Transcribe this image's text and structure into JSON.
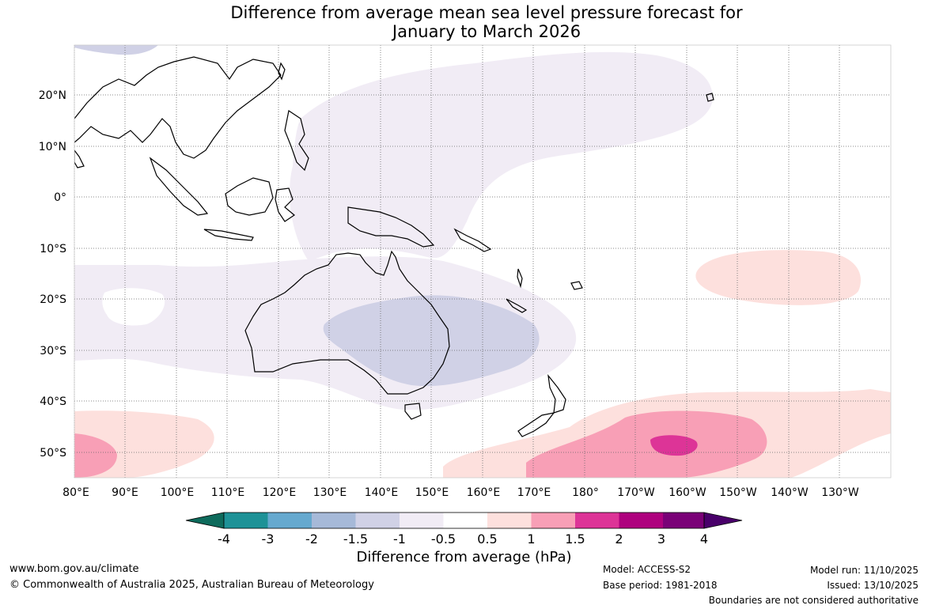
{
  "title": {
    "line1": "Difference from average mean sea level pressure forecast for",
    "line2": "January to March 2026"
  },
  "lat_labels": [
    "20°N",
    "10°N",
    "0°",
    "10°S",
    "20°S",
    "30°S",
    "40°S",
    "50°S"
  ],
  "lon_labels": [
    "80°E",
    "90°E",
    "100°E",
    "110°E",
    "120°E",
    "130°E",
    "140°E",
    "150°E",
    "160°E",
    "170°E",
    "180°",
    "170°W",
    "160°W",
    "150°W",
    "140°W",
    "130°W"
  ],
  "colorbar": {
    "ticks": [
      "-4",
      "-3",
      "-2",
      "-1.5",
      "-1",
      "-0.5",
      "0.5",
      "1",
      "1.5",
      "2",
      "3",
      "4"
    ],
    "colors": [
      "#0e6b5c",
      "#1e9297",
      "#66a9cf",
      "#a6b9d8",
      "#d0d1e6",
      "#f1ecf5",
      "#ffffff",
      "#fde0dd",
      "#f89fb6",
      "#dd3497",
      "#ae017e",
      "#7a0177",
      "#49006a"
    ],
    "title": "Difference from average (hPa)"
  },
  "footer": {
    "website": "www.bom.gov.au/climate",
    "copyright": "© Commonwealth of Australia 2025, Australian Bureau of Meteorology",
    "model": "Model: ACCESS-S2",
    "base_period": "Base period: 1981-2018",
    "model_run": "Model run: 11/10/2025",
    "issued": "Issued: 13/10/2025",
    "disclaimer": "Boundaries are not considered authoritative"
  }
}
